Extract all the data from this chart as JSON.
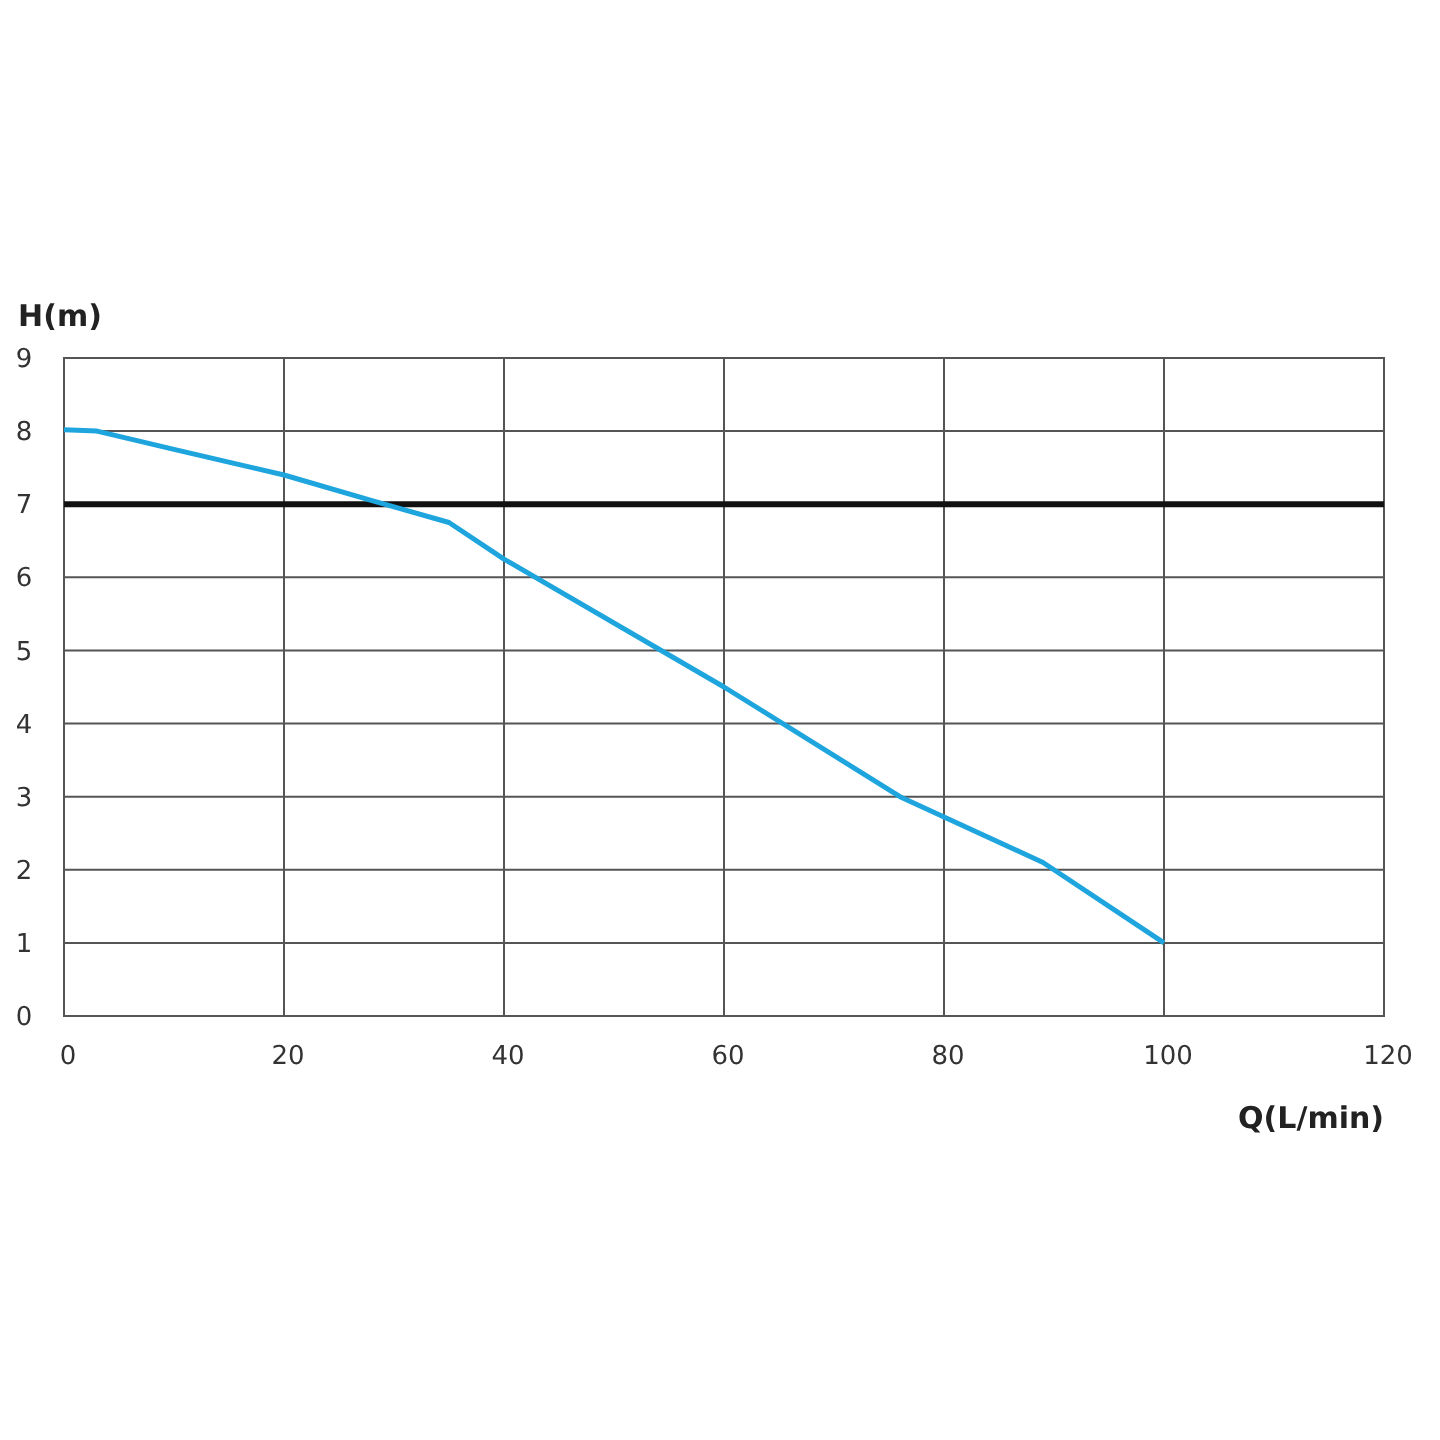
{
  "chart_data": {
    "type": "line",
    "xlabel": "Q(L/min)",
    "ylabel": "H(m)",
    "x": [
      0,
      3,
      10,
      20,
      28,
      35,
      40,
      60,
      76,
      89,
      100
    ],
    "series": [
      {
        "color": "#1ea5de",
        "values": [
          8.02,
          8.0,
          7.75,
          7.4,
          7.05,
          6.75,
          6.25,
          4.5,
          3.0,
          2.1,
          1.0
        ]
      }
    ],
    "xlim": [
      0,
      120
    ],
    "xticks": [
      0,
      20,
      40,
      60,
      80,
      100,
      120
    ],
    "ylim": [
      0,
      9
    ],
    "yticks": [
      0,
      1,
      2,
      3,
      4,
      5,
      6,
      7,
      8,
      9
    ],
    "grid": true,
    "marker": "none",
    "line_style": "solid",
    "ref_lines": [
      {
        "axis": "y",
        "value": 7,
        "color": "#111111"
      }
    ]
  }
}
